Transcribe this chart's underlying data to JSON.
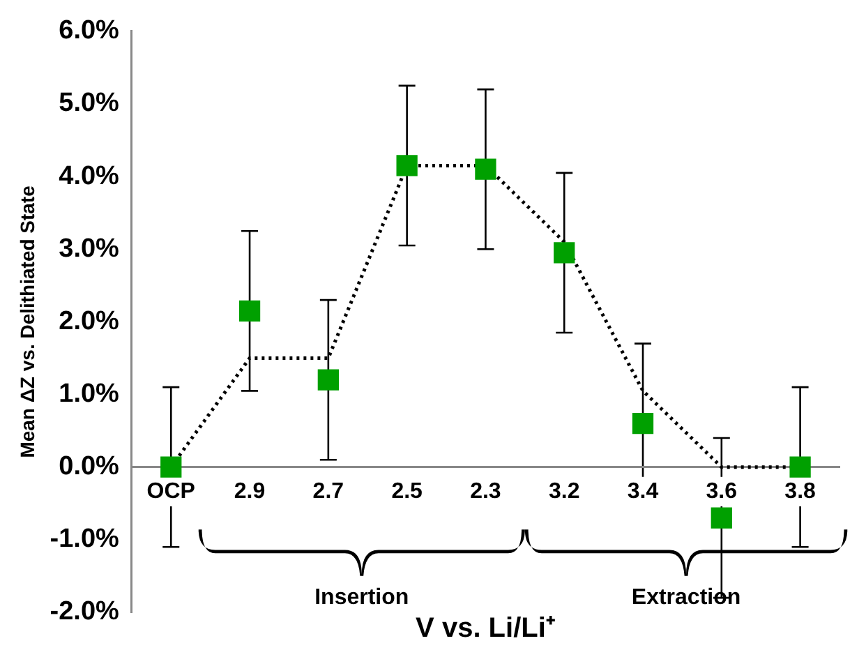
{
  "chart_data": {
    "type": "scatter",
    "xlabel": "V vs. Li/Li⁺",
    "ylabel": "Mean ΔZ vs. Delithiated State",
    "categories": [
      "OCP",
      "2.9",
      "2.7",
      "2.5",
      "2.3",
      "3.2",
      "3.4",
      "3.6",
      "3.8"
    ],
    "series": [
      {
        "type": "line",
        "color": "#000000",
        "line_style": "dotted",
        "marker": "none",
        "values": [
          0,
          1.5,
          1.5,
          4.15,
          4.15,
          3.1,
          1.05,
          0,
          0
        ]
      },
      {
        "color": "#00a000",
        "values": [
          0,
          2.15,
          1.2,
          4.15,
          4.1,
          2.95,
          0.6,
          -0.7,
          0
        ],
        "errors": [
          1.1,
          1.1,
          1.1,
          1.1,
          1.1,
          1.1,
          1.1,
          1.1,
          1.1
        ]
      }
    ],
    "ylim": [
      -2,
      6
    ],
    "yticks": [
      {
        "value": -2,
        "label": "-2.0%"
      },
      {
        "value": -1,
        "label": "-1.0%"
      },
      {
        "value": 0,
        "label": "0.0%"
      },
      {
        "value": 1,
        "label": "1.0%"
      },
      {
        "value": 2,
        "label": "2.0%"
      },
      {
        "value": 3,
        "label": "3.0%"
      },
      {
        "value": 4,
        "label": "4.0%"
      },
      {
        "value": 5,
        "label": "5.0%"
      },
      {
        "value": 6,
        "label": "6.0%"
      }
    ],
    "annotations": [
      "Insertion",
      "Extraction"
    ],
    "marker": "square",
    "grid": false,
    "legend": false
  }
}
